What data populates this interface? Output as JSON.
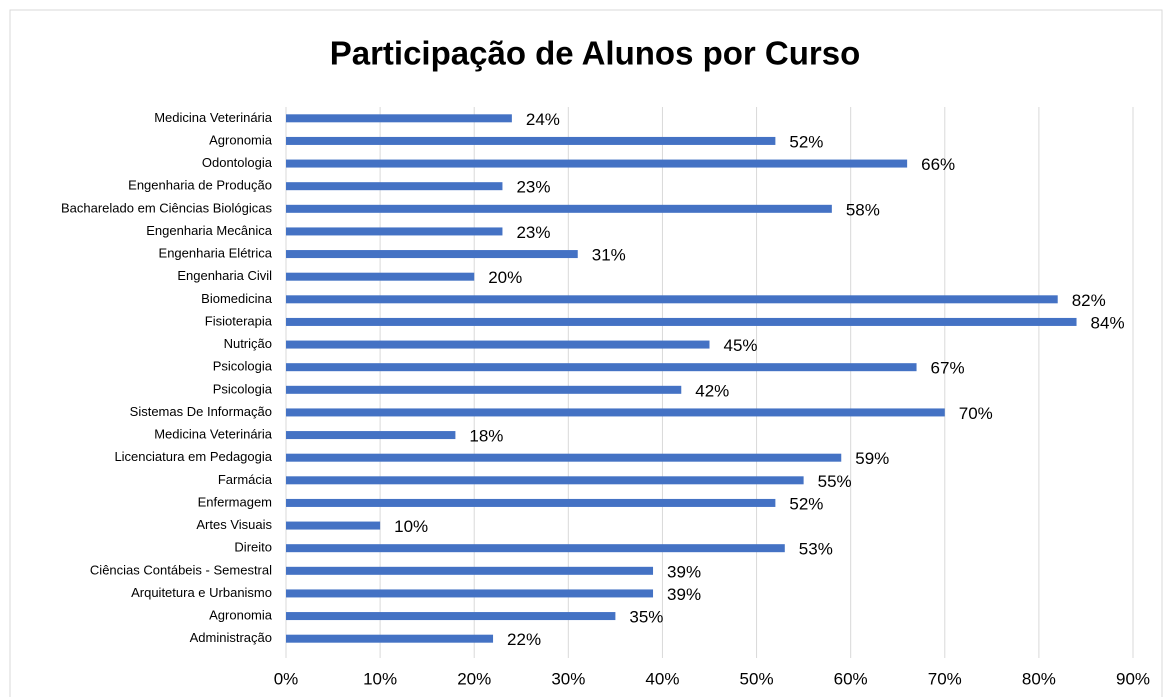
{
  "chart_data": {
    "type": "barh",
    "title": "Participação de Alunos por Curso",
    "categories": [
      "Medicina Veterinária",
      "Agronomia",
      "Odontologia",
      "Engenharia de Produção",
      "Bacharelado em Ciências Biológicas",
      "Engenharia Mecânica",
      "Engenharia Elétrica",
      "Engenharia Civil",
      "Biomedicina",
      "Fisioterapia",
      "Nutrição",
      "Psicologia",
      "Psicologia",
      "Sistemas De Informação",
      "Medicina Veterinária",
      "Licenciatura em Pedagogia",
      "Farmácia",
      "Enfermagem",
      "Artes Visuais",
      "Direito",
      "Ciências Contábeis - Semestral",
      "Arquitetura e Urbanismo",
      "Agronomia",
      "Administração"
    ],
    "values": [
      24,
      52,
      66,
      23,
      58,
      23,
      31,
      20,
      82,
      84,
      45,
      67,
      42,
      70,
      18,
      59,
      55,
      52,
      10,
      53,
      39,
      39,
      35,
      22
    ],
    "value_labels": [
      "24%",
      "52%",
      "66%",
      "23%",
      "58%",
      "23%",
      "31%",
      "20%",
      "82%",
      "84%",
      "45%",
      "67%",
      "42%",
      "70%",
      "18%",
      "59%",
      "55%",
      "52%",
      "10%",
      "53%",
      "39%",
      "39%",
      "35%",
      "22%"
    ],
    "color": "#4472c4",
    "xlim": [
      0,
      90
    ],
    "xticks": [
      {
        "value": 0,
        "label": "0%"
      },
      {
        "value": 10,
        "label": "10%"
      },
      {
        "value": 20,
        "label": "20%"
      },
      {
        "value": 30,
        "label": "30%"
      },
      {
        "value": 40,
        "label": "40%"
      },
      {
        "value": 50,
        "label": "50%"
      },
      {
        "value": 60,
        "label": "60%"
      },
      {
        "value": 70,
        "label": "70%"
      },
      {
        "value": 80,
        "label": "80%"
      },
      {
        "value": 90,
        "label": "90%"
      }
    ],
    "grid": true
  }
}
